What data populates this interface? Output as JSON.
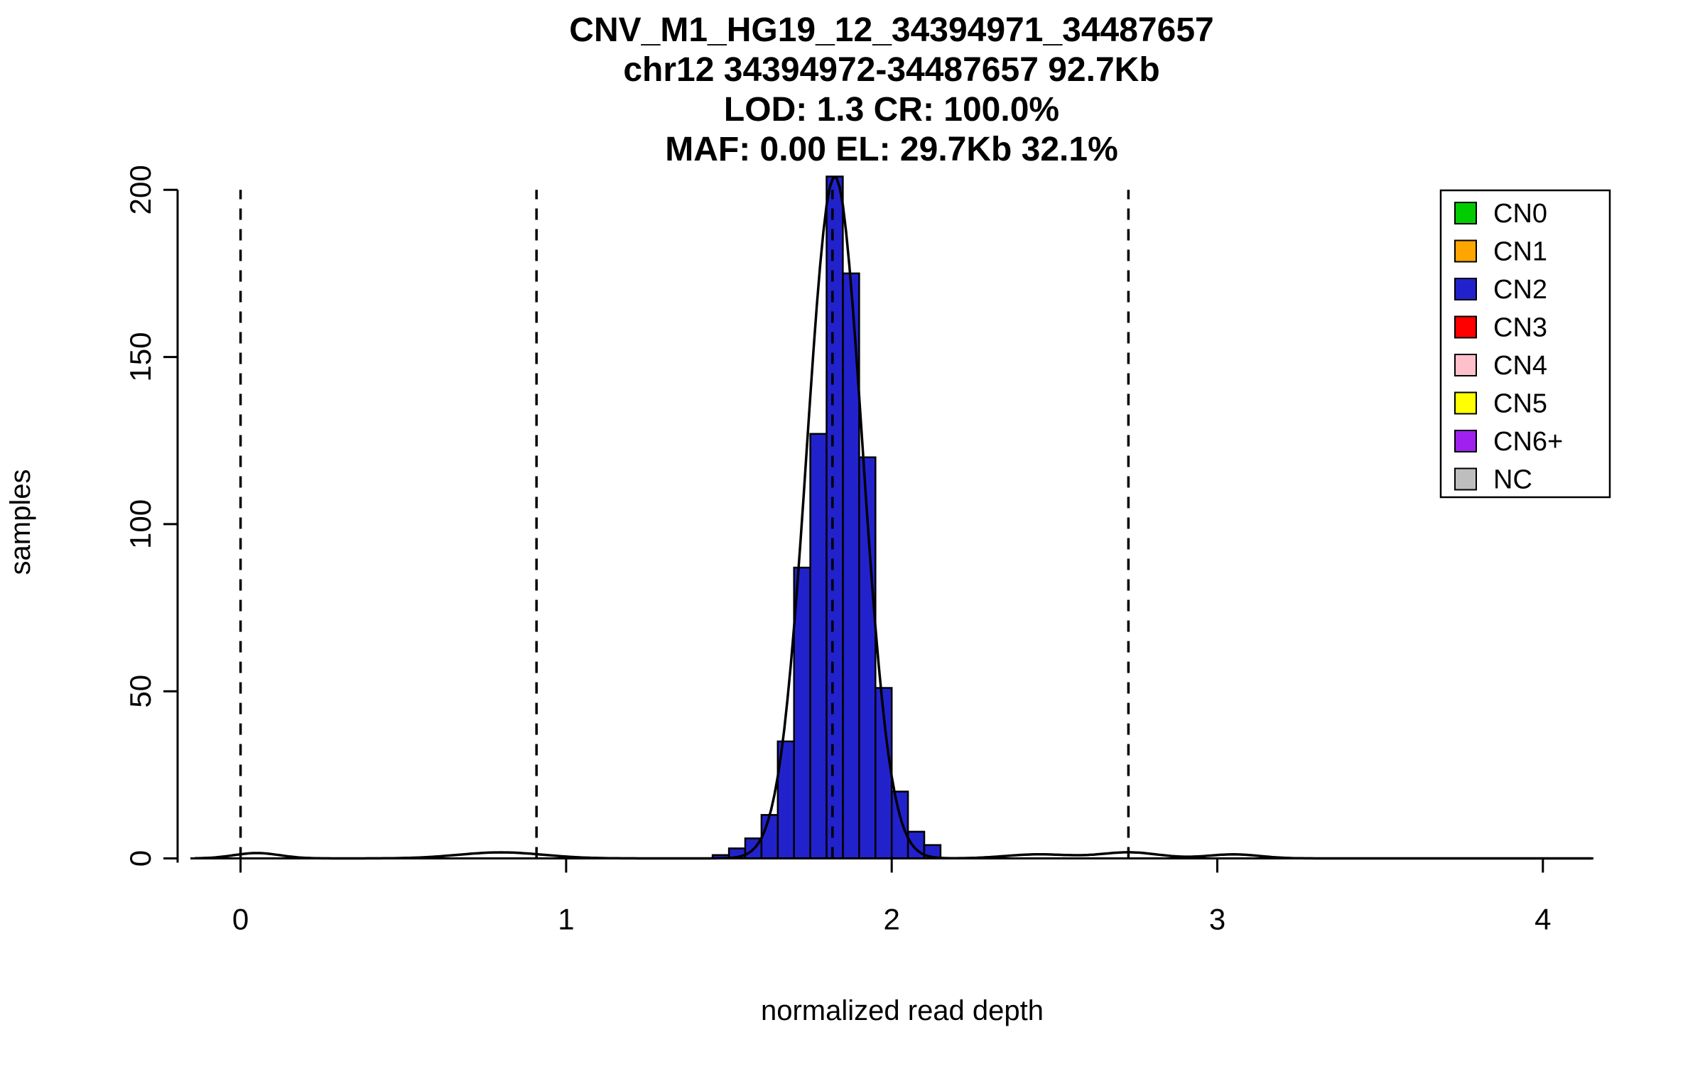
{
  "title_lines": [
    "CNV_M1_HG19_12_34394971_34487657",
    "chr12 34394972-34487657 92.7Kb",
    "LOD: 1.3 CR: 100.0%",
    "MAF: 0.00 EL: 29.7Kb 32.1%"
  ],
  "x_axis": {
    "label": "normalized read depth",
    "ticks": [
      "0",
      "1",
      "2",
      "3",
      "4"
    ],
    "tick_values": [
      0,
      1,
      2,
      3,
      4
    ],
    "range": [
      -0.16,
      4.16
    ]
  },
  "y_axis": {
    "label": "samples",
    "ticks": [
      "0",
      "50",
      "100",
      "150",
      "200"
    ],
    "tick_values": [
      0,
      50,
      100,
      150,
      200
    ],
    "range": [
      0,
      205
    ]
  },
  "legend": {
    "position": "top-right",
    "items": [
      {
        "label": "CN0",
        "color": "#00CC00"
      },
      {
        "label": "CN1",
        "color": "#FFA500"
      },
      {
        "label": "CN2",
        "color": "#2222CC"
      },
      {
        "label": "CN3",
        "color": "#FF0000"
      },
      {
        "label": "CN4",
        "color": "#FFC0CB"
      },
      {
        "label": "CN5",
        "color": "#FFFF00"
      },
      {
        "label": "CN6+",
        "color": "#A020F0"
      },
      {
        "label": "NC",
        "color": "#BEBEBE"
      }
    ]
  },
  "chart_data": {
    "type": "bar",
    "title": "CNV_M1_HG19_12_34394971_34487657",
    "subtitle_lines": [
      "chr12 34394972-34487657 92.7Kb",
      "LOD: 1.3 CR: 100.0%",
      "MAF: 0.00 EL: 29.7Kb 32.1%"
    ],
    "xlabel": "normalized read depth",
    "ylabel": "samples",
    "xlim": [
      -0.16,
      4.16
    ],
    "ylim": [
      0,
      205
    ],
    "grid": false,
    "legend_position": "top-right",
    "histogram": {
      "fill_color": "#2222CC",
      "copy_number_class": "CN2",
      "bin_width": 0.05,
      "bins": [
        {
          "x": 1.45,
          "count": 1
        },
        {
          "x": 1.5,
          "count": 3
        },
        {
          "x": 1.55,
          "count": 6
        },
        {
          "x": 1.6,
          "count": 13
        },
        {
          "x": 1.65,
          "count": 35
        },
        {
          "x": 1.7,
          "count": 87
        },
        {
          "x": 1.75,
          "count": 127
        },
        {
          "x": 1.8,
          "count": 204
        },
        {
          "x": 1.85,
          "count": 175
        },
        {
          "x": 1.9,
          "count": 120
        },
        {
          "x": 1.95,
          "count": 51
        },
        {
          "x": 2.0,
          "count": 20
        },
        {
          "x": 2.05,
          "count": 8
        },
        {
          "x": 2.1,
          "count": 4
        }
      ]
    },
    "dashed_lines_x": [
      0,
      0.909,
      1.818,
      2.727
    ],
    "density_components": [
      {
        "mean": 1.825,
        "sd": 0.085,
        "amplitude": 204
      },
      {
        "mean": 0.05,
        "sd": 0.07,
        "amplitude": 1.6
      },
      {
        "mean": 0.8,
        "sd": 0.13,
        "amplitude": 1.8
      },
      {
        "mean": 2.45,
        "sd": 0.1,
        "amplitude": 1.2
      },
      {
        "mean": 2.73,
        "sd": 0.09,
        "amplitude": 1.8
      },
      {
        "mean": 3.05,
        "sd": 0.08,
        "amplitude": 1.2
      }
    ]
  }
}
